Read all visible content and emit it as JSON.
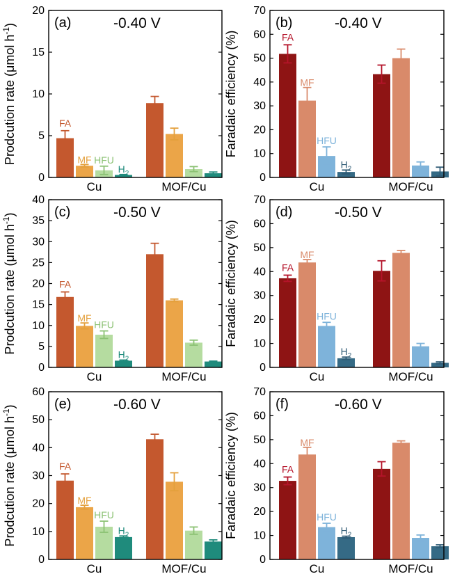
{
  "colors": {
    "FA_rate": "#C4582E",
    "MF_rate": "#EBA548",
    "HFU_rate": "#B5DCA0",
    "H2_rate": "#1F8B7C",
    "FA_fe": "#8E1414",
    "MF_fe": "#D98A6A",
    "HFU_fe": "#7EB3DA",
    "H2_fe": "#356A85",
    "label_FA_rate": "#C4582E",
    "label_MF_rate": "#E4A03C",
    "label_HFU_rate": "#8CC274",
    "label_H2_rate": "#1F8B7C",
    "label_FA_fe": "#B5142A",
    "label_MF_fe": "#D98A6A",
    "label_HFU_fe": "#7EB3DA",
    "label_H2_fe": "#2E5A74"
  },
  "chart_data": [
    {
      "panel": "(a)",
      "title": "-0.40 V",
      "type": "bar",
      "ylabel": "Prodcution rate (μmol h⁻¹)",
      "ylim": [
        0,
        20
      ],
      "yticks": [
        "0",
        "5",
        "10",
        "15",
        "20"
      ],
      "categories": [
        "Cu",
        "MOF/Cu"
      ],
      "series": [
        {
          "name": "FA",
          "values": [
            4.7,
            8.9
          ],
          "errors": [
            0.9,
            0.8
          ]
        },
        {
          "name": "MF",
          "values": [
            1.4,
            5.2
          ],
          "errors": [
            0.15,
            0.7
          ]
        },
        {
          "name": "HFU",
          "values": [
            0.85,
            1.0
          ],
          "errors": [
            0.5,
            0.3
          ]
        },
        {
          "name": "H2",
          "values": [
            0.3,
            0.5
          ],
          "errors": [
            0.05,
            0.15
          ]
        }
      ]
    },
    {
      "panel": "(b)",
      "title": "-0.40 V",
      "type": "bar",
      "ylabel": "Faradaic efficiency (%)",
      "ylim": [
        0,
        70
      ],
      "yticks": [
        "0",
        "10",
        "20",
        "30",
        "40",
        "50",
        "60",
        "70"
      ],
      "categories": [
        "Cu",
        "MOF/Cu"
      ],
      "series": [
        {
          "name": "FA",
          "values": [
            51.8,
            43.3
          ],
          "errors": [
            3.8,
            3.8
          ]
        },
        {
          "name": "MF",
          "values": [
            32.2,
            50.0
          ],
          "errors": [
            5.5,
            3.8
          ]
        },
        {
          "name": "HFU",
          "values": [
            9.0,
            5.0
          ],
          "errors": [
            3.8,
            1.5
          ]
        },
        {
          "name": "H2",
          "values": [
            2.3,
            2.5
          ],
          "errors": [
            0.8,
            1.8
          ]
        }
      ]
    },
    {
      "panel": "(c)",
      "title": "-0.50 V",
      "type": "bar",
      "ylabel": "Prodcution rate (μmol h⁻¹)",
      "ylim": [
        0,
        40
      ],
      "yticks": [
        "0",
        "5",
        "10",
        "15",
        "20",
        "25",
        "30",
        "35",
        "40"
      ],
      "categories": [
        "Cu",
        "MOF/Cu"
      ],
      "series": [
        {
          "name": "FA",
          "values": [
            16.8,
            27.0
          ],
          "errors": [
            1.2,
            2.6
          ]
        },
        {
          "name": "MF",
          "values": [
            9.9,
            16.0
          ],
          "errors": [
            0.7,
            0.3
          ]
        },
        {
          "name": "HFU",
          "values": [
            7.8,
            5.9
          ],
          "errors": [
            0.9,
            0.6
          ]
        },
        {
          "name": "H2",
          "values": [
            1.6,
            1.4
          ],
          "errors": [
            0.15,
            0.1
          ]
        }
      ]
    },
    {
      "panel": "(d)",
      "title": "-0.50 V",
      "type": "bar",
      "ylabel": "Faradaic efficiency (%)",
      "ylim": [
        0,
        70
      ],
      "yticks": [
        "0",
        "10",
        "20",
        "30",
        "40",
        "50",
        "60",
        "70"
      ],
      "categories": [
        "Cu",
        "MOF/Cu"
      ],
      "series": [
        {
          "name": "FA",
          "values": [
            37.2,
            40.3
          ],
          "errors": [
            1.3,
            4.2
          ]
        },
        {
          "name": "MF",
          "values": [
            43.8,
            47.8
          ],
          "errors": [
            1.2,
            1.0
          ]
        },
        {
          "name": "HFU",
          "values": [
            17.3,
            8.8
          ],
          "errors": [
            1.5,
            1.2
          ]
        },
        {
          "name": "H2",
          "values": [
            3.8,
            1.9
          ],
          "errors": [
            0.5,
            0.4
          ]
        }
      ]
    },
    {
      "panel": "(e)",
      "title": "-0.60 V",
      "type": "bar",
      "ylabel": "Prodcution rate (μmol h⁻¹)",
      "ylim": [
        0,
        60
      ],
      "yticks": [
        "0",
        "10",
        "20",
        "30",
        "40",
        "50",
        "60"
      ],
      "categories": [
        "Cu",
        "MOF/Cu"
      ],
      "series": [
        {
          "name": "FA",
          "values": [
            28.2,
            43.0
          ],
          "errors": [
            2.4,
            1.8
          ]
        },
        {
          "name": "MF",
          "values": [
            18.7,
            27.8
          ],
          "errors": [
            0.7,
            3.2
          ]
        },
        {
          "name": "HFU",
          "values": [
            11.7,
            10.3
          ],
          "errors": [
            2.0,
            1.3
          ]
        },
        {
          "name": "H2",
          "values": [
            8.0,
            6.4
          ],
          "errors": [
            0.4,
            0.6
          ]
        }
      ]
    },
    {
      "panel": "(f)",
      "title": "-0.60 V",
      "type": "bar",
      "ylabel": "Faradaic efficiency (%)",
      "ylim": [
        0,
        70
      ],
      "yticks": [
        "0",
        "10",
        "20",
        "30",
        "40",
        "50",
        "60",
        "70"
      ],
      "categories": [
        "Cu",
        "MOF/Cu"
      ],
      "series": [
        {
          "name": "FA",
          "values": [
            32.8,
            37.8
          ],
          "errors": [
            1.6,
            3.0
          ]
        },
        {
          "name": "MF",
          "values": [
            43.8,
            48.7
          ],
          "errors": [
            3.0,
            0.8
          ]
        },
        {
          "name": "HFU",
          "values": [
            13.5,
            9.0
          ],
          "errors": [
            1.6,
            1.2
          ]
        },
        {
          "name": "H2",
          "values": [
            9.3,
            5.5
          ],
          "errors": [
            0.4,
            0.6
          ]
        }
      ]
    }
  ],
  "series_labels": {
    "FA": "FA",
    "MF": "MF",
    "HFU": "HFU",
    "H2": "H2"
  }
}
